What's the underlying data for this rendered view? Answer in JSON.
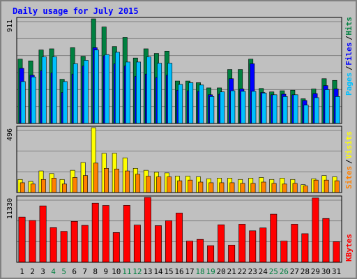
{
  "chart_data": {
    "type": "bar",
    "title": "Daily usage for July 2015",
    "categories": [
      "1",
      "2",
      "3",
      "4",
      "5",
      "6",
      "7",
      "8",
      "9",
      "10",
      "11",
      "12",
      "13",
      "14",
      "15",
      "16",
      "17",
      "18",
      "19",
      "20",
      "21",
      "22",
      "23",
      "24",
      "25",
      "26",
      "27",
      "28",
      "29",
      "30",
      "31"
    ],
    "weekend_days": [
      "4",
      "5",
      "11",
      "12",
      "18",
      "19",
      "25",
      "26"
    ],
    "panels": [
      {
        "id": "hits-files-pages",
        "ymax_label": "911",
        "ylim": [
          0,
          911
        ],
        "series": [
          {
            "name": "Hits",
            "color": "#008040",
            "values": [
              560,
              545,
              640,
              650,
              385,
              660,
              585,
              911,
              840,
              670,
              750,
              570,
              650,
              610,
              630,
              370,
              370,
              355,
              310,
              310,
              470,
              470,
              560,
              305,
              275,
              285,
              290,
              215,
              300,
              390,
              375
            ]
          },
          {
            "name": "Files",
            "color": "#0000ff",
            "values": [
              480,
              420,
              460,
              440,
              270,
              430,
              500,
              660,
              590,
              520,
              500,
              410,
              430,
              400,
              420,
              290,
              285,
              280,
              250,
              255,
              390,
              300,
              520,
              270,
              250,
              255,
              250,
              200,
              260,
              330,
              300
            ]
          },
          {
            "name": "Pages",
            "color": "#00c0ff",
            "values": [
              365,
              405,
              580,
              580,
              365,
              520,
              550,
              640,
              600,
              620,
              535,
              535,
              580,
              525,
              525,
              340,
              355,
              335,
              235,
              275,
              285,
              280,
              280,
              265,
              250,
              235,
              250,
              160,
              225,
              295,
              235
            ]
          }
        ]
      },
      {
        "id": "visits-sites",
        "ymax_label": "496",
        "ylim": [
          0,
          496
        ],
        "series": [
          {
            "name": "Visits",
            "color": "#ffff00",
            "values": [
              100,
              85,
              165,
              145,
              100,
              170,
              230,
              496,
              300,
              300,
              265,
              185,
              170,
              155,
              150,
              125,
              125,
              120,
              105,
              110,
              110,
              100,
              110,
              115,
              100,
              110,
              100,
              60,
              105,
              130,
              120
            ]
          },
          {
            "name": "Sites",
            "color": "#ff8000",
            "values": [
              75,
              65,
              100,
              110,
              65,
              115,
              130,
              225,
              185,
              180,
              165,
              140,
              125,
              120,
              120,
              90,
              95,
              80,
              75,
              75,
              75,
              70,
              70,
              80,
              70,
              65,
              70,
              50,
              95,
              95,
              90
            ]
          }
        ]
      },
      {
        "id": "kbytes",
        "ymax_label": "11330",
        "ylim": [
          0,
          11330
        ],
        "series": [
          {
            "name": "KBytes",
            "color": "#ff0000",
            "values": [
              7900,
              7300,
              9850,
              6050,
              5400,
              7150,
              6450,
              10330,
              9930,
              5200,
              9950,
              6500,
              11330,
              6400,
              7250,
              8600,
              3700,
              4000,
              2900,
              6550,
              3000,
              6650,
              5500,
              6000,
              8400,
              3700,
              6650,
              5000,
              11230,
              7650,
              3600
            ]
          }
        ]
      }
    ],
    "legend_right": [
      {
        "label": "Pages",
        "color": "#00c0ff",
        "panel": 0
      },
      {
        "label": "/",
        "color": "#000000",
        "panel": 0
      },
      {
        "label": "Files",
        "color": "#0000ff",
        "panel": 0
      },
      {
        "label": "/",
        "color": "#000000",
        "panel": 0
      },
      {
        "label": "Hits",
        "color": "#008040",
        "panel": 0
      },
      {
        "label": "Sites",
        "color": "#ff8000",
        "panel": 1
      },
      {
        "label": "/",
        "color": "#000000",
        "panel": 1
      },
      {
        "label": "Visits",
        "color": "#ffff00",
        "panel": 1
      },
      {
        "label": "KBytes",
        "color": "#ff0000",
        "panel": 2
      }
    ],
    "colors": {
      "title": "#0000ff",
      "weekday_label": "#000000",
      "weekend_label": "#008040",
      "background": "#c0c0c0",
      "grid": "#808080"
    },
    "grid": true
  }
}
